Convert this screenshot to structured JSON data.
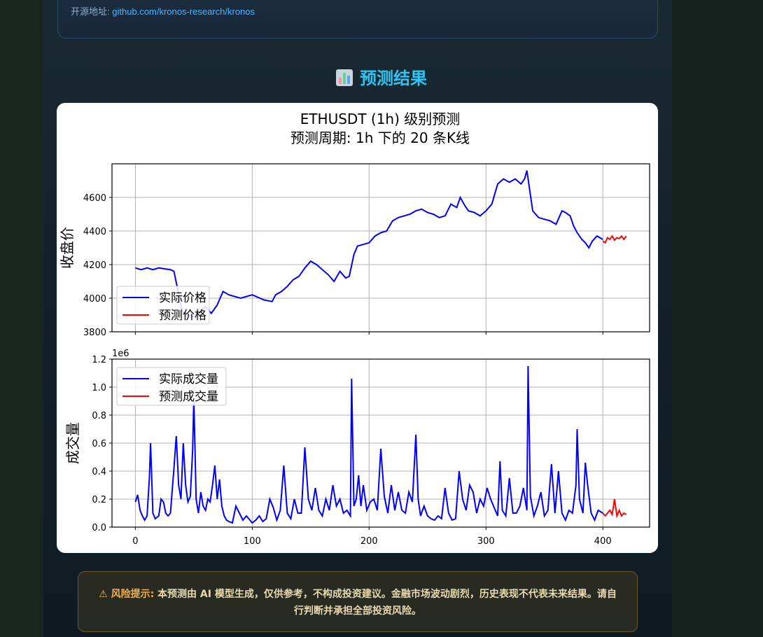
{
  "info": {
    "source_label": "开源地址:",
    "source_link": "github.com/kronos-research/kronos"
  },
  "section": {
    "icon": "bar-chart-icon",
    "title": "预测结果"
  },
  "chart_data": [
    {
      "type": "line",
      "title": "ETHUSDT (1h) 级别预测",
      "subtitle": "预测周期: 1h 下的 20 条K线",
      "ylabel": "收盘价",
      "ylim": [
        3800,
        4800
      ],
      "yticks": [
        "3800",
        "4000",
        "4200",
        "4400",
        "4600"
      ],
      "xlim": [
        -20,
        440
      ],
      "grid": true,
      "legend": "lower-left",
      "series": [
        {
          "name": "实际价格",
          "color": "#0000ff",
          "x": [
            0,
            5,
            10,
            15,
            20,
            25,
            30,
            33,
            36,
            40,
            45,
            50,
            55,
            60,
            65,
            70,
            75,
            80,
            90,
            100,
            110,
            117,
            120,
            125,
            130,
            135,
            140,
            145,
            150,
            155,
            160,
            165,
            170,
            175,
            180,
            183,
            187,
            190,
            195,
            200,
            205,
            210,
            215,
            220,
            225,
            230,
            235,
            240,
            245,
            250,
            255,
            260,
            265,
            270,
            275,
            278,
            282,
            285,
            290,
            295,
            300,
            305,
            310,
            315,
            320,
            325,
            330,
            333,
            335,
            340,
            345,
            350,
            355,
            360,
            365,
            368,
            372,
            375,
            378,
            382,
            385,
            388,
            391,
            395,
            400
          ],
          "values": [
            4180,
            4170,
            4180,
            4170,
            4180,
            4175,
            4170,
            4160,
            4060,
            3920,
            3900,
            3890,
            3920,
            3950,
            3910,
            3960,
            4040,
            4020,
            4000,
            4020,
            3990,
            3980,
            4020,
            4040,
            4070,
            4110,
            4130,
            4180,
            4220,
            4200,
            4170,
            4140,
            4100,
            4160,
            4120,
            4130,
            4260,
            4310,
            4320,
            4330,
            4370,
            4390,
            4400,
            4460,
            4480,
            4490,
            4500,
            4520,
            4530,
            4510,
            4500,
            4480,
            4490,
            4560,
            4540,
            4600,
            4550,
            4520,
            4510,
            4490,
            4520,
            4560,
            4680,
            4710,
            4690,
            4710,
            4680,
            4710,
            4760,
            4520,
            4480,
            4470,
            4460,
            4440,
            4520,
            4510,
            4490,
            4430,
            4390,
            4350,
            4330,
            4300,
            4340,
            4370,
            4350
          ]
        },
        {
          "name": "预测价格",
          "color": "#ff0000",
          "x": [
            400,
            402,
            404,
            406,
            408,
            410,
            412,
            414,
            416,
            418,
            420
          ],
          "values": [
            4340,
            4330,
            4360,
            4350,
            4370,
            4345,
            4360,
            4355,
            4370,
            4350,
            4370
          ]
        }
      ]
    },
    {
      "type": "line",
      "ylabel": "成交量",
      "scale_label": "1e6",
      "ylim": [
        0.0,
        1.2
      ],
      "yticks": [
        "0.0",
        "0.2",
        "0.4",
        "0.6",
        "0.8",
        "1.0",
        "1.2"
      ],
      "xlim": [
        -20,
        440
      ],
      "xticks": [
        "0",
        "100",
        "200",
        "300",
        "400"
      ],
      "grid": true,
      "legend": "upper-left",
      "series": [
        {
          "name": "实际成交量",
          "color": "#0000ff",
          "x": [
            0,
            2,
            4,
            6,
            8,
            10,
            12,
            13,
            15,
            17,
            20,
            22,
            24,
            26,
            28,
            30,
            33,
            35,
            37,
            39,
            41,
            43,
            45,
            47,
            49,
            50,
            52,
            54,
            56,
            58,
            60,
            62,
            64,
            66,
            68,
            70,
            72,
            74,
            76,
            78,
            80,
            83,
            86,
            89,
            92,
            95,
            98,
            100,
            103,
            106,
            109,
            112,
            115,
            118,
            121,
            124,
            127,
            130,
            133,
            136,
            139,
            142,
            145,
            148,
            151,
            154,
            157,
            160,
            163,
            166,
            169,
            172,
            175,
            178,
            181,
            184,
            185,
            187,
            189,
            191,
            193,
            195,
            198,
            201,
            204,
            207,
            210,
            213,
            216,
            219,
            222,
            225,
            228,
            231,
            234,
            237,
            240,
            242,
            244,
            247,
            250,
            253,
            256,
            259,
            262,
            265,
            268,
            271,
            274,
            277,
            280,
            283,
            286,
            289,
            292,
            295,
            298,
            301,
            304,
            307,
            310,
            312,
            314,
            317,
            320,
            323,
            326,
            329,
            332,
            335,
            336,
            338,
            341,
            344,
            347,
            350,
            353,
            356,
            359,
            362,
            365,
            368,
            371,
            374,
            377,
            378,
            380,
            383,
            385,
            387,
            390,
            393,
            396,
            400
          ],
          "values": [
            0.18,
            0.23,
            0.12,
            0.08,
            0.05,
            0.08,
            0.35,
            0.6,
            0.1,
            0.06,
            0.08,
            0.2,
            0.18,
            0.1,
            0.08,
            0.1,
            0.42,
            0.65,
            0.3,
            0.2,
            0.6,
            0.3,
            0.18,
            0.22,
            0.55,
            0.92,
            0.2,
            0.1,
            0.25,
            0.15,
            0.12,
            0.2,
            0.18,
            0.3,
            0.44,
            0.2,
            0.34,
            0.15,
            0.08,
            0.05,
            0.04,
            0.03,
            0.15,
            0.1,
            0.05,
            0.08,
            0.05,
            0.03,
            0.05,
            0.08,
            0.04,
            0.06,
            0.2,
            0.14,
            0.05,
            0.12,
            0.44,
            0.1,
            0.06,
            0.2,
            0.1,
            0.1,
            0.57,
            0.2,
            0.12,
            0.28,
            0.12,
            0.08,
            0.2,
            0.12,
            0.3,
            0.15,
            0.2,
            0.1,
            0.12,
            0.08,
            1.06,
            0.15,
            0.2,
            0.37,
            0.15,
            0.3,
            0.12,
            0.18,
            0.2,
            0.12,
            0.56,
            0.22,
            0.1,
            0.3,
            0.12,
            0.25,
            0.12,
            0.1,
            0.25,
            0.18,
            0.66,
            0.2,
            0.08,
            0.15,
            0.08,
            0.06,
            0.05,
            0.08,
            0.06,
            0.28,
            0.1,
            0.05,
            0.06,
            0.4,
            0.2,
            0.12,
            0.3,
            0.25,
            0.1,
            0.2,
            0.15,
            0.28,
            0.2,
            0.14,
            0.08,
            0.47,
            0.12,
            0.08,
            0.35,
            0.1,
            0.1,
            0.15,
            0.28,
            0.12,
            1.15,
            0.22,
            0.08,
            0.15,
            0.25,
            0.08,
            0.12,
            0.45,
            0.1,
            0.4,
            0.1,
            0.05,
            0.12,
            0.1,
            0.3,
            0.7,
            0.2,
            0.1,
            0.46,
            0.3,
            0.1,
            0.05,
            0.12,
            0.1
          ]
        },
        {
          "name": "预测成交量",
          "color": "#ff0000",
          "x": [
            400,
            402,
            404,
            406,
            408,
            410,
            412,
            414,
            416,
            418,
            420
          ],
          "values": [
            0.1,
            0.08,
            0.1,
            0.12,
            0.09,
            0.2,
            0.08,
            0.12,
            0.08,
            0.1,
            0.09
          ]
        }
      ]
    }
  ],
  "warning": {
    "icon": "warning-icon",
    "label": "风险提示:",
    "text": "本预测由 AI 模型生成，仅供参考，不构成投资建议。金融市场波动剧烈，历史表现不代表未来结果。请自行判断并承担全部投资风险。"
  }
}
